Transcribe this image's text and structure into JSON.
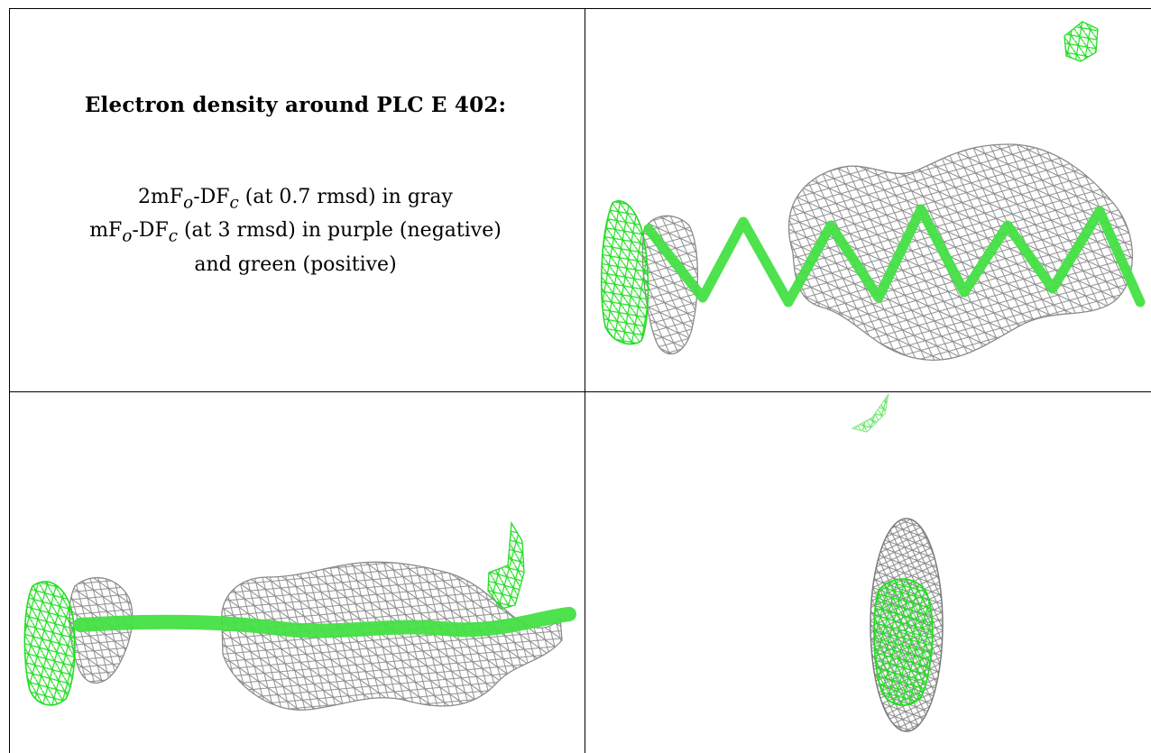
{
  "title": "Electron density around PLC E 402:",
  "legend": {
    "line1": {
      "a": "2mF",
      "sub1": "o",
      "b": "-DF",
      "sub2": "c",
      "rest": " (at 0.7 rmsd) in gray"
    },
    "line2": {
      "a": "mF",
      "sub1": "o",
      "b": "-DF",
      "sub2": "c",
      "rest": " (at 3 rmsd) in purple (negative)"
    },
    "line3": "and green (positive)"
  },
  "colors": {
    "gray_mesh": "#8a8a8a",
    "green_mesh": "#22dd22",
    "stick": "#44e044"
  }
}
